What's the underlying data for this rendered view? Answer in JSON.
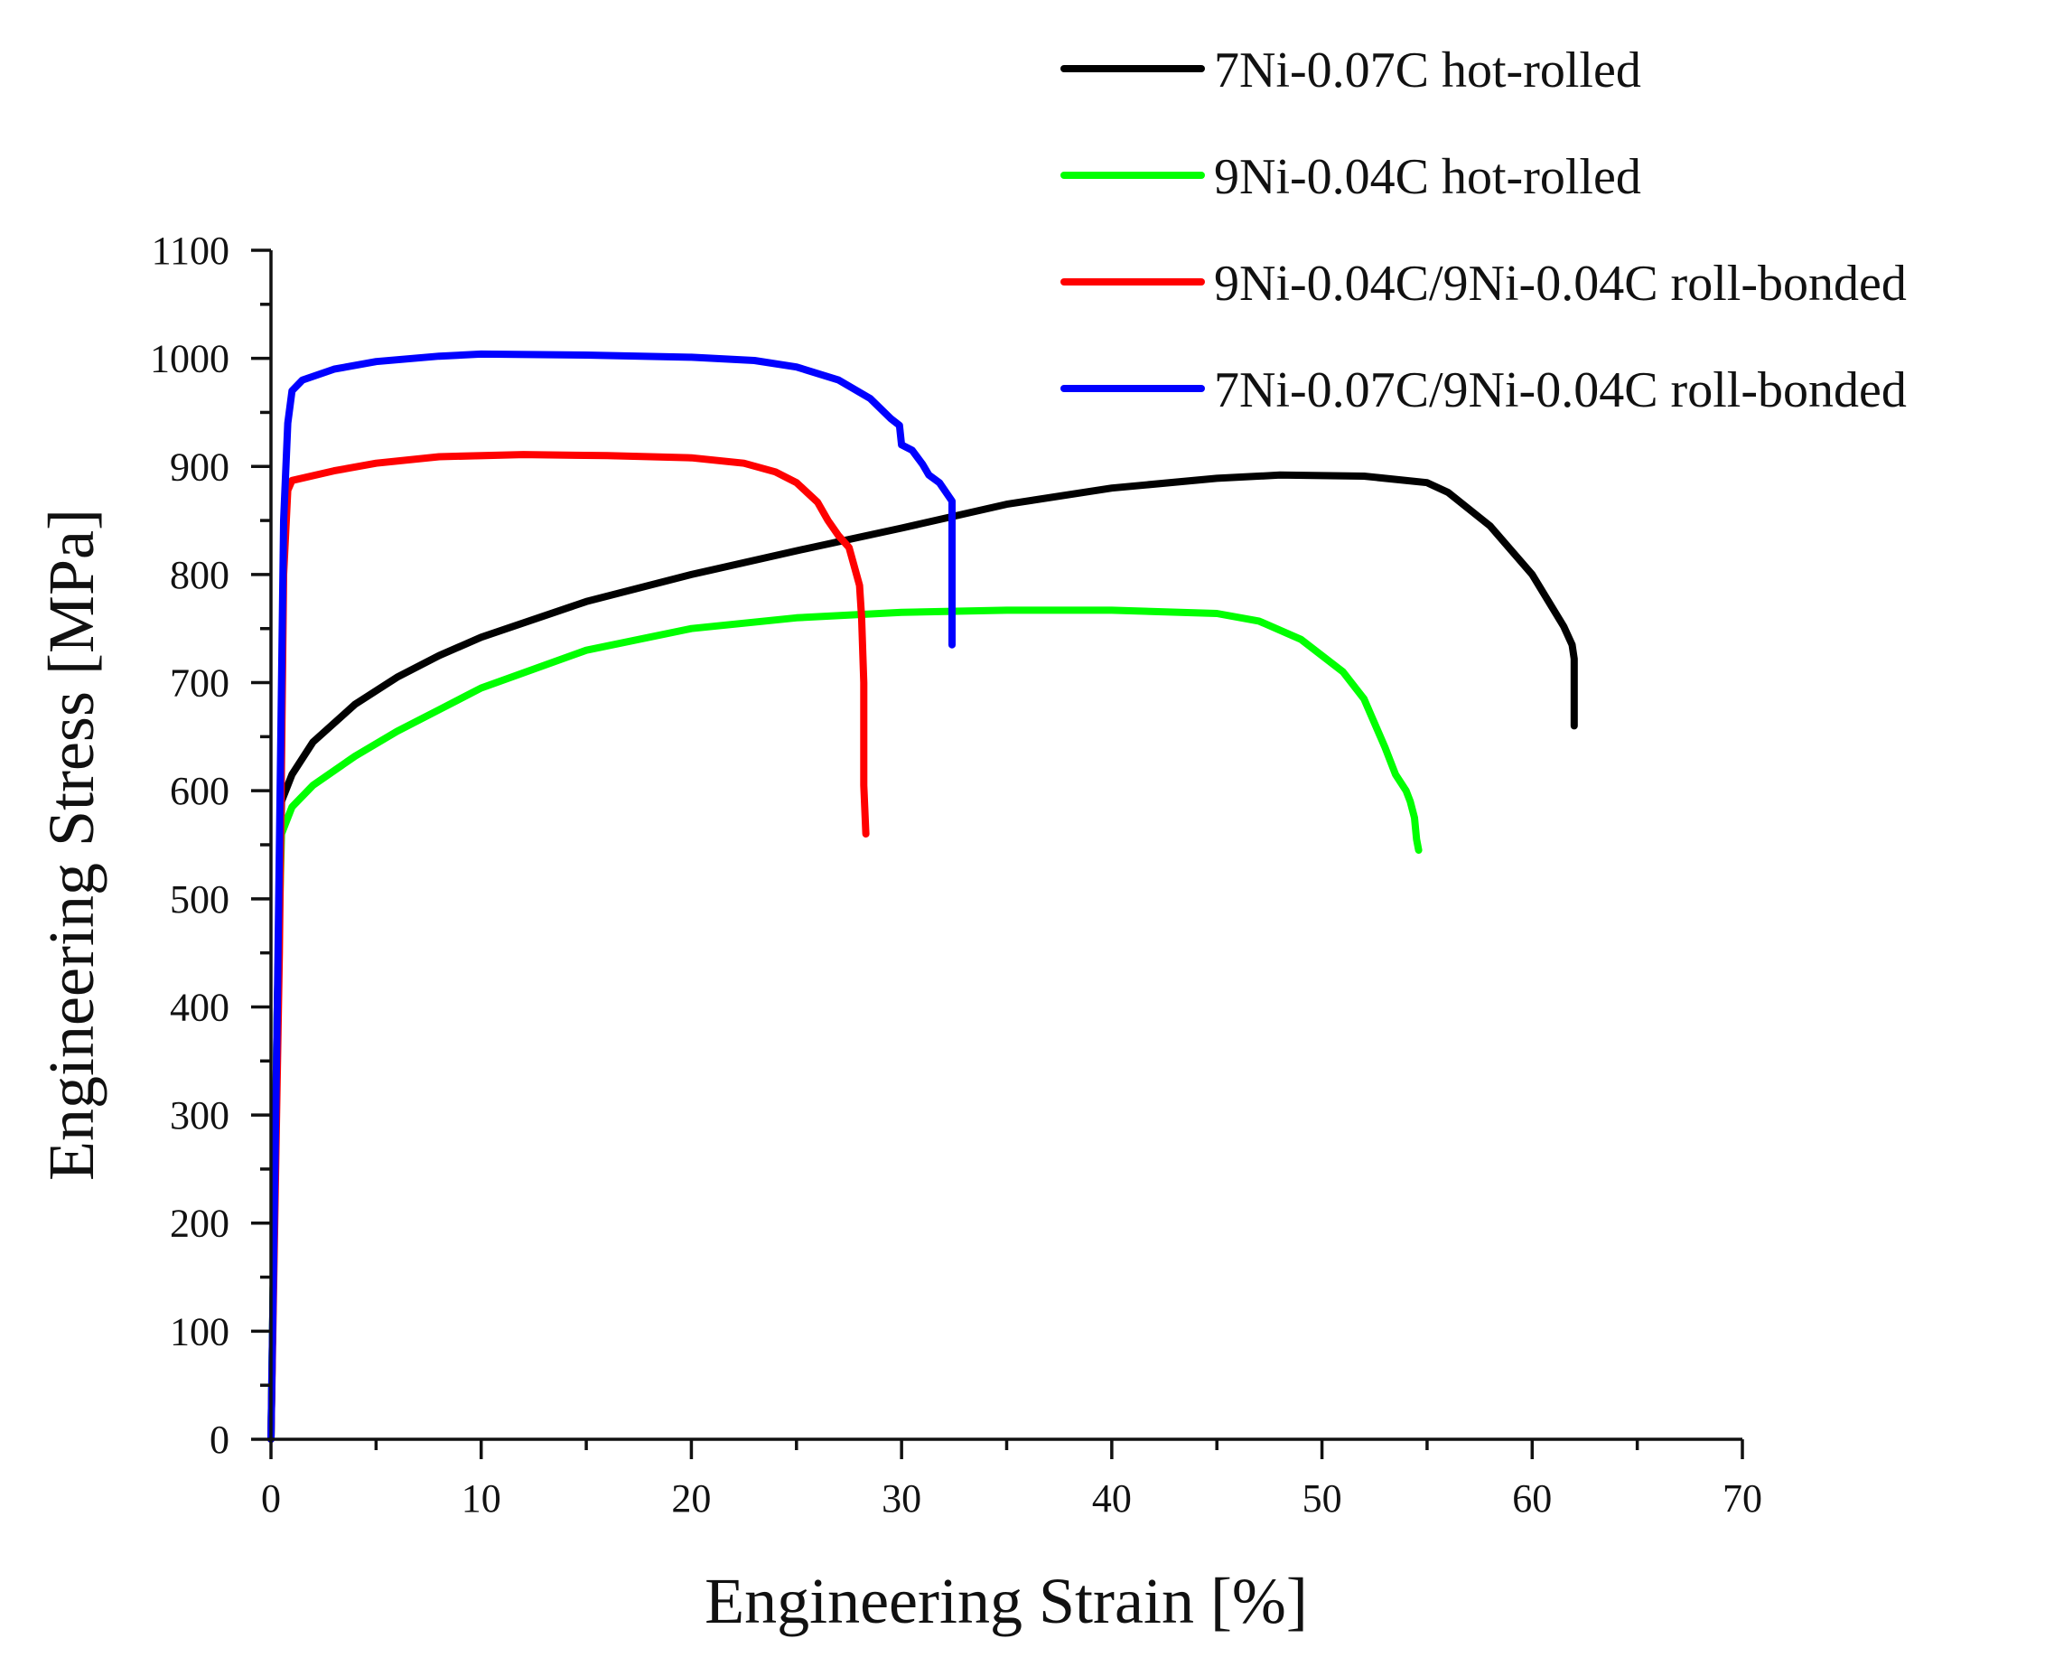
{
  "chart_data": {
    "type": "line",
    "title": "",
    "xlabel": "Engineering Strain [%]",
    "ylabel": "Engineering Stress [MPa]",
    "xlim": [
      0,
      70
    ],
    "ylim": [
      0,
      1100
    ],
    "xticks": [
      0,
      10,
      20,
      30,
      40,
      50,
      60,
      70
    ],
    "yticks": [
      0,
      100,
      200,
      300,
      400,
      500,
      600,
      700,
      800,
      900,
      1000,
      1100
    ],
    "grid": false,
    "legend_position": "top-right",
    "series": [
      {
        "name": "7Ni-0.07C hot-rolled",
        "color": "#000000",
        "points": [
          [
            0,
            0
          ],
          [
            0.3,
            400
          ],
          [
            0.5,
            590
          ],
          [
            1,
            615
          ],
          [
            2,
            645
          ],
          [
            4,
            680
          ],
          [
            6,
            705
          ],
          [
            8,
            725
          ],
          [
            10,
            742
          ],
          [
            15,
            775
          ],
          [
            20,
            800
          ],
          [
            25,
            822
          ],
          [
            30,
            843
          ],
          [
            35,
            865
          ],
          [
            40,
            880
          ],
          [
            45,
            889
          ],
          [
            48,
            892
          ],
          [
            52,
            891
          ],
          [
            55,
            885
          ],
          [
            56,
            876
          ],
          [
            58,
            845
          ],
          [
            60,
            800
          ],
          [
            61.5,
            752
          ],
          [
            61.9,
            735
          ],
          [
            62,
            722
          ],
          [
            62,
            660
          ]
        ]
      },
      {
        "name": "9Ni-0.04C hot-rolled",
        "color": "#00ff00",
        "points": [
          [
            0,
            0
          ],
          [
            0.3,
            400
          ],
          [
            0.5,
            560
          ],
          [
            1,
            585
          ],
          [
            2,
            605
          ],
          [
            4,
            632
          ],
          [
            6,
            655
          ],
          [
            8,
            675
          ],
          [
            10,
            695
          ],
          [
            15,
            730
          ],
          [
            20,
            750
          ],
          [
            25,
            760
          ],
          [
            30,
            765
          ],
          [
            35,
            767
          ],
          [
            40,
            767
          ],
          [
            45,
            764
          ],
          [
            47,
            757
          ],
          [
            49,
            740
          ],
          [
            51,
            710
          ],
          [
            52,
            685
          ],
          [
            53,
            640
          ],
          [
            53.5,
            615
          ],
          [
            54,
            600
          ],
          [
            54.2,
            590
          ],
          [
            54.4,
            575
          ],
          [
            54.5,
            555
          ],
          [
            54.6,
            545
          ]
        ]
      },
      {
        "name": "9Ni-0.04C/9Ni-0.04C roll-bonded",
        "color": "#ff0000",
        "points": [
          [
            0,
            0
          ],
          [
            0.4,
            450
          ],
          [
            0.6,
            800
          ],
          [
            0.8,
            878
          ],
          [
            1,
            887
          ],
          [
            3,
            896
          ],
          [
            5,
            903
          ],
          [
            8,
            909
          ],
          [
            12,
            911
          ],
          [
            16,
            910
          ],
          [
            20,
            908
          ],
          [
            22.5,
            903
          ],
          [
            24,
            895
          ],
          [
            25,
            885
          ],
          [
            26,
            867
          ],
          [
            26.5,
            850
          ],
          [
            27,
            836
          ],
          [
            27.5,
            825
          ],
          [
            28,
            790
          ],
          [
            28.1,
            760
          ],
          [
            28.2,
            700
          ],
          [
            28.2,
            605
          ],
          [
            28.3,
            560
          ]
        ]
      },
      {
        "name": "7Ni-0.07C/9Ni-0.04C roll-bonded",
        "color": "#0000ff",
        "points": [
          [
            0,
            0
          ],
          [
            0.3,
            400
          ],
          [
            0.6,
            850
          ],
          [
            0.8,
            940
          ],
          [
            1,
            970
          ],
          [
            1.5,
            980
          ],
          [
            3,
            990
          ],
          [
            5,
            997
          ],
          [
            8,
            1002
          ],
          [
            10,
            1004
          ],
          [
            15,
            1003
          ],
          [
            20,
            1001
          ],
          [
            23,
            998
          ],
          [
            25,
            992
          ],
          [
            27,
            980
          ],
          [
            28.5,
            963
          ],
          [
            29.5,
            944
          ],
          [
            29.9,
            938
          ],
          [
            30,
            920
          ],
          [
            30.5,
            915
          ],
          [
            31,
            902
          ],
          [
            31.3,
            892
          ],
          [
            31.8,
            885
          ],
          [
            32.4,
            868
          ],
          [
            32.4,
            735
          ]
        ]
      }
    ]
  }
}
